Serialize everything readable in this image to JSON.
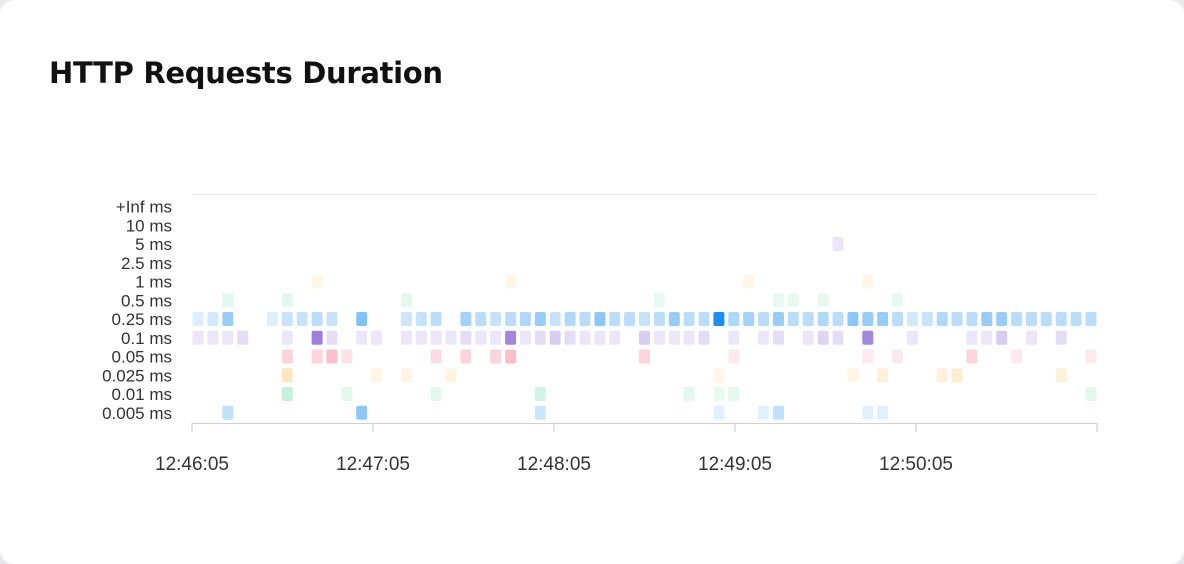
{
  "card": {
    "title": "HTTP Requests Duration"
  },
  "chart_data": {
    "type": "heatmap",
    "title": "HTTP Requests Duration",
    "y_buckets": [
      "+Inf ms",
      "10 ms",
      "5 ms",
      "2.5 ms",
      "1 ms",
      "0.5 ms",
      "0.25 ms",
      "0.1 ms",
      "0.05 ms",
      "0.025 ms",
      "0.01 ms",
      "0.005 ms"
    ],
    "x_ticks": [
      "12:46:05",
      "12:47:05",
      "12:48:05",
      "12:49:05",
      "12:50:05"
    ],
    "x_range_seconds": [
      0,
      300
    ],
    "x_step_seconds": 5,
    "colors": {
      "0.005 ms": "#2f9bf0",
      "0.01 ms": "#45cf96",
      "0.025 ms": "#f6b94a",
      "0.05 ms": "#f5718a",
      "0.1 ms": "#7b56cf",
      "0.25 ms": "#1e8ff0",
      "0.5 ms": "#45cf96",
      "1 ms": "#f6b94a",
      "5 ms": "#7b56cf"
    },
    "cells": [
      {
        "bucket": "5 ms",
        "values": [
          [
            215,
            0.15
          ]
        ]
      },
      {
        "bucket": "1 ms",
        "values": [
          [
            40,
            0.12
          ],
          [
            105,
            0.12
          ],
          [
            185,
            0.12
          ],
          [
            225,
            0.12
          ]
        ]
      },
      {
        "bucket": "0.5 ms",
        "values": [
          [
            10,
            0.15
          ],
          [
            30,
            0.15
          ],
          [
            70,
            0.15
          ],
          [
            155,
            0.12
          ],
          [
            195,
            0.12
          ],
          [
            200,
            0.12
          ],
          [
            210,
            0.12
          ],
          [
            235,
            0.12
          ]
        ]
      },
      {
        "bucket": "0.25 ms",
        "values": [
          [
            0,
            0.15
          ],
          [
            5,
            0.2
          ],
          [
            10,
            0.45
          ],
          [
            25,
            0.15
          ],
          [
            30,
            0.25
          ],
          [
            35,
            0.25
          ],
          [
            40,
            0.3
          ],
          [
            45,
            0.25
          ],
          [
            55,
            0.55
          ],
          [
            70,
            0.22
          ],
          [
            75,
            0.25
          ],
          [
            80,
            0.3
          ],
          [
            90,
            0.4
          ],
          [
            95,
            0.3
          ],
          [
            100,
            0.25
          ],
          [
            105,
            0.3
          ],
          [
            110,
            0.35
          ],
          [
            115,
            0.45
          ],
          [
            120,
            0.25
          ],
          [
            125,
            0.35
          ],
          [
            130,
            0.3
          ],
          [
            135,
            0.5
          ],
          [
            140,
            0.3
          ],
          [
            145,
            0.3
          ],
          [
            150,
            0.25
          ],
          [
            155,
            0.3
          ],
          [
            160,
            0.45
          ],
          [
            165,
            0.3
          ],
          [
            170,
            0.3
          ],
          [
            175,
            1.0
          ],
          [
            180,
            0.35
          ],
          [
            185,
            0.4
          ],
          [
            190,
            0.3
          ],
          [
            195,
            0.45
          ],
          [
            200,
            0.3
          ],
          [
            205,
            0.3
          ],
          [
            210,
            0.35
          ],
          [
            215,
            0.3
          ],
          [
            220,
            0.5
          ],
          [
            225,
            0.45
          ],
          [
            230,
            0.45
          ],
          [
            235,
            0.3
          ],
          [
            240,
            0.2
          ],
          [
            245,
            0.25
          ],
          [
            250,
            0.35
          ],
          [
            255,
            0.3
          ],
          [
            260,
            0.3
          ],
          [
            265,
            0.45
          ],
          [
            270,
            0.45
          ],
          [
            275,
            0.3
          ],
          [
            280,
            0.3
          ],
          [
            285,
            0.3
          ],
          [
            290,
            0.3
          ],
          [
            295,
            0.3
          ],
          [
            300,
            0.3
          ]
        ]
      },
      {
        "bucket": "0.1 ms",
        "values": [
          [
            0,
            0.15
          ],
          [
            5,
            0.15
          ],
          [
            10,
            0.15
          ],
          [
            15,
            0.2
          ],
          [
            30,
            0.15
          ],
          [
            40,
            0.75
          ],
          [
            45,
            0.2
          ],
          [
            55,
            0.15
          ],
          [
            60,
            0.15
          ],
          [
            70,
            0.15
          ],
          [
            75,
            0.15
          ],
          [
            80,
            0.15
          ],
          [
            85,
            0.15
          ],
          [
            90,
            0.2
          ],
          [
            95,
            0.15
          ],
          [
            100,
            0.15
          ],
          [
            105,
            0.7
          ],
          [
            110,
            0.15
          ],
          [
            115,
            0.2
          ],
          [
            120,
            0.3
          ],
          [
            125,
            0.2
          ],
          [
            130,
            0.15
          ],
          [
            135,
            0.15
          ],
          [
            140,
            0.15
          ],
          [
            150,
            0.3
          ],
          [
            155,
            0.15
          ],
          [
            160,
            0.15
          ],
          [
            165,
            0.15
          ],
          [
            170,
            0.2
          ],
          [
            180,
            0.15
          ],
          [
            190,
            0.15
          ],
          [
            195,
            0.2
          ],
          [
            205,
            0.15
          ],
          [
            210,
            0.25
          ],
          [
            215,
            0.2
          ],
          [
            225,
            0.7
          ],
          [
            240,
            0.15
          ],
          [
            260,
            0.15
          ],
          [
            265,
            0.15
          ],
          [
            270,
            0.3
          ],
          [
            280,
            0.15
          ],
          [
            290,
            0.2
          ]
        ]
      },
      {
        "bucket": "0.05 ms",
        "values": [
          [
            30,
            0.3
          ],
          [
            40,
            0.3
          ],
          [
            45,
            0.45
          ],
          [
            50,
            0.2
          ],
          [
            80,
            0.25
          ],
          [
            90,
            0.3
          ],
          [
            100,
            0.3
          ],
          [
            105,
            0.45
          ],
          [
            150,
            0.3
          ],
          [
            180,
            0.15
          ],
          [
            225,
            0.15
          ],
          [
            235,
            0.15
          ],
          [
            260,
            0.3
          ],
          [
            275,
            0.15
          ],
          [
            300,
            0.15
          ]
        ]
      },
      {
        "bucket": "0.025 ms",
        "values": [
          [
            30,
            0.35
          ],
          [
            60,
            0.15
          ],
          [
            70,
            0.15
          ],
          [
            85,
            0.15
          ],
          [
            175,
            0.12
          ],
          [
            220,
            0.15
          ],
          [
            230,
            0.2
          ],
          [
            250,
            0.2
          ],
          [
            255,
            0.25
          ],
          [
            290,
            0.2
          ]
        ]
      },
      {
        "bucket": "0.01 ms",
        "values": [
          [
            30,
            0.3
          ],
          [
            50,
            0.15
          ],
          [
            80,
            0.15
          ],
          [
            115,
            0.25
          ],
          [
            165,
            0.15
          ],
          [
            175,
            0.12
          ],
          [
            180,
            0.15
          ],
          [
            300,
            0.15
          ]
        ]
      },
      {
        "bucket": "0.005 ms",
        "values": [
          [
            10,
            0.3
          ],
          [
            55,
            0.55
          ],
          [
            115,
            0.25
          ],
          [
            175,
            0.15
          ],
          [
            190,
            0.15
          ],
          [
            195,
            0.3
          ],
          [
            225,
            0.15
          ],
          [
            230,
            0.15
          ]
        ]
      }
    ]
  }
}
